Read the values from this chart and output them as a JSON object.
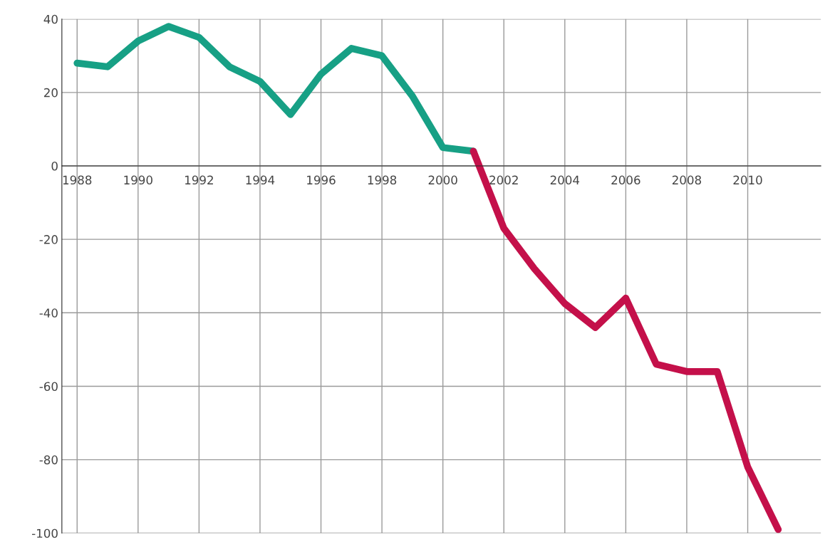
{
  "chart_data": {
    "type": "line",
    "series": [
      {
        "color": "#17a085",
        "x": [
          1988,
          1989,
          1990,
          1991,
          1992,
          1993,
          1994,
          1995,
          1996,
          1997,
          1998,
          1999,
          2000,
          2001
        ],
        "values": [
          28,
          27,
          34,
          38,
          35,
          27,
          23,
          14,
          25,
          32,
          30,
          19,
          5,
          4
        ]
      },
      {
        "color": "#c4104a",
        "x": [
          2001,
          2002,
          2003,
          2004,
          2005,
          2006,
          2007,
          2008,
          2009,
          2010,
          2011
        ],
        "values": [
          4,
          -17,
          -28,
          -37.5,
          -44,
          -36,
          -54,
          -56,
          -56,
          -82,
          -99
        ]
      }
    ],
    "xlim": [
      1987.5,
      2012.4
    ],
    "xticks": [
      1988,
      1990,
      1992,
      1994,
      1996,
      {
        "value": 1998,
        "label": "1998"
      },
      2000,
      2002,
      2004,
      2006,
      2008,
      2010
    ],
    "ylim": [
      -100,
      40
    ],
    "yticks": [
      -100,
      -80,
      -60,
      -40,
      -20,
      0,
      20,
      40
    ],
    "grid": true,
    "marker": "none",
    "line_style": "solid"
  }
}
